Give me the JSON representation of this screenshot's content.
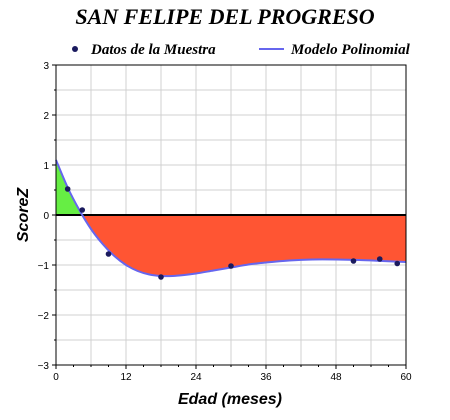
{
  "chart_data": {
    "type": "line",
    "title": "SAN FELIPE DEL PROGRESO",
    "xlabel": "Edad (meses)",
    "ylabel": "ScoreZ",
    "xlim": [
      0,
      60
    ],
    "ylim": [
      -3,
      3
    ],
    "x_ticks": [
      "0",
      "12",
      "24",
      "36",
      "48",
      "60"
    ],
    "y_ticks": [
      "3",
      "2",
      "1",
      "0",
      "-1",
      "-2",
      "-3"
    ],
    "grid": true,
    "legend_position": "top",
    "series": [
      {
        "name": "Datos de la Muestra",
        "kind": "scatter",
        "color": "#1a1a5e",
        "x": [
          2,
          4.5,
          9,
          18,
          30,
          51,
          55.5,
          58.5
        ],
        "y": [
          0.52,
          0.1,
          -0.78,
          -1.24,
          -1.02,
          -0.92,
          -0.88,
          -0.97
        ]
      },
      {
        "name": "Modelo Polinomial",
        "kind": "line",
        "color": "#6666ee",
        "x": [
          0,
          2,
          4,
          6,
          8,
          10,
          12,
          14,
          16,
          18,
          20,
          22,
          24,
          27,
          30,
          33,
          36,
          40,
          44,
          48,
          52,
          56,
          60
        ],
        "y": [
          1.1,
          0.55,
          0.1,
          -0.28,
          -0.58,
          -0.82,
          -1.0,
          -1.12,
          -1.19,
          -1.22,
          -1.22,
          -1.2,
          -1.17,
          -1.11,
          -1.05,
          -0.99,
          -0.95,
          -0.91,
          -0.89,
          -0.89,
          -0.9,
          -0.92,
          -0.94
        ]
      }
    ],
    "fill_colors": {
      "above_zero": "#66ee44",
      "below_zero": "#ff5533"
    },
    "zero_line_color": "#000000"
  }
}
